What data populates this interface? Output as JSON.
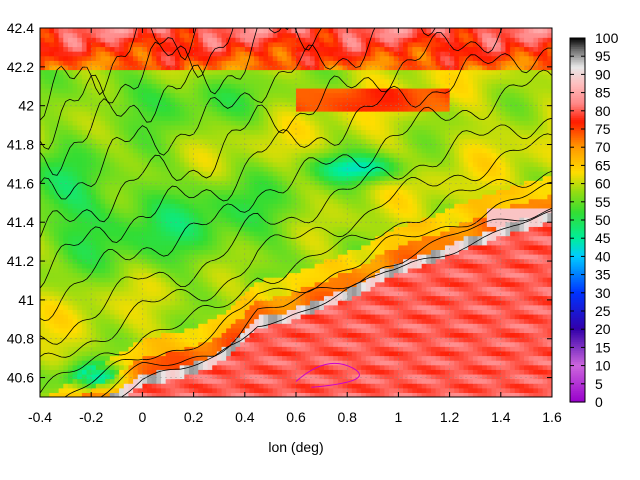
{
  "chart_data": {
    "type": "heatmap",
    "title": "",
    "xlabel": "lon (deg)",
    "ylabel": "",
    "xlim": [
      -0.4,
      1.6
    ],
    "ylim": [
      40.5,
      42.4
    ],
    "x_ticks": [
      "-0.4",
      "-0.2",
      "0",
      "0.2",
      "0.4",
      "0.6",
      "0.8",
      "1",
      "1.2",
      "1.4",
      "1.6"
    ],
    "y_ticks": [
      "40.6",
      "40.8",
      "41",
      "41.2",
      "41.4",
      "41.6",
      "41.8",
      "42",
      "42.2",
      "42.4"
    ],
    "colorbar": {
      "min": 0,
      "max": 100,
      "ticks": [
        "0",
        "5",
        "10",
        "15",
        "20",
        "25",
        "30",
        "35",
        "40",
        "45",
        "50",
        "55",
        "60",
        "65",
        "70",
        "75",
        "80",
        "85",
        "90",
        "95",
        "100"
      ],
      "stops": [
        {
          "value": 0,
          "color": "#9900cc"
        },
        {
          "value": 10,
          "color": "#cc66dd"
        },
        {
          "value": 20,
          "color": "#3300aa"
        },
        {
          "value": 30,
          "color": "#0033ff"
        },
        {
          "value": 40,
          "color": "#00ccff"
        },
        {
          "value": 45,
          "color": "#00ee99"
        },
        {
          "value": 52,
          "color": "#33dd33"
        },
        {
          "value": 58,
          "color": "#99dd11"
        },
        {
          "value": 63,
          "color": "#ffdd00"
        },
        {
          "value": 70,
          "color": "#ff9900"
        },
        {
          "value": 77,
          "color": "#ff1a00"
        },
        {
          "value": 82,
          "color": "#ff8888"
        },
        {
          "value": 87,
          "color": "#ffbbbb"
        },
        {
          "value": 92,
          "color": "#e8e8e8"
        },
        {
          "value": 97,
          "color": "#666666"
        },
        {
          "value": 100,
          "color": "#000000"
        }
      ]
    },
    "grid": true,
    "coastline": [
      [
        -0.1,
        40.5
      ],
      [
        0.0,
        40.58
      ],
      [
        0.15,
        40.62
      ],
      [
        0.28,
        40.68
      ],
      [
        0.38,
        40.78
      ],
      [
        0.45,
        40.88
      ],
      [
        0.55,
        40.9
      ],
      [
        0.65,
        40.95
      ],
      [
        0.75,
        41.0
      ],
      [
        0.85,
        41.05
      ],
      [
        0.95,
        41.13
      ],
      [
        1.05,
        41.18
      ],
      [
        1.15,
        41.22
      ],
      [
        1.25,
        41.28
      ],
      [
        1.35,
        41.32
      ],
      [
        1.45,
        41.37
      ],
      [
        1.6,
        41.42
      ]
    ]
  }
}
